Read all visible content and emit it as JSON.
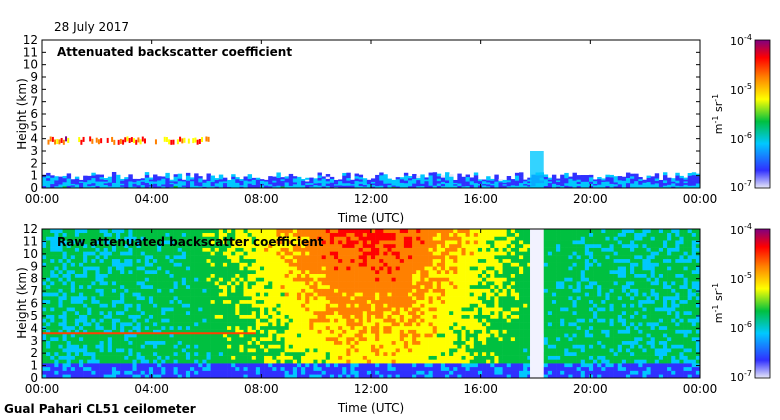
{
  "header": {
    "date": "28 July 2017"
  },
  "footer": {
    "site": "Gual Pahari CL51 ceilometer"
  },
  "colorbar": {
    "labels": [
      "10^-4",
      "10^-5",
      "10^-6",
      "10^-7"
    ],
    "unit": "m^-1 sr^-1",
    "colors": [
      "#e8e8f8",
      "#3030ff",
      "#00c8ff",
      "#00c040",
      "#ffff00",
      "#ff8000",
      "#ff0000",
      "#800080"
    ]
  },
  "chart_data": [
    {
      "type": "heatmap",
      "title": "Attenuated backscatter coefficient",
      "xlabel": "Time (UTC)",
      "ylabel": "Height (km)",
      "xticks": [
        "00:00",
        "04:00",
        "08:00",
        "12:00",
        "16:00",
        "20:00",
        "00:00"
      ],
      "yticks": [
        0,
        1,
        2,
        3,
        4,
        5,
        6,
        7,
        8,
        9,
        10,
        11,
        12
      ],
      "xlim_hours": [
        0,
        24
      ],
      "ylim_km": [
        0,
        12
      ],
      "features": {
        "boundary_layer_top_km": 1.3,
        "cloud_layer_km": 3.8,
        "cloud_layer_hours": [
          0.2,
          6.2
        ],
        "rain_event_hours": [
          17.8,
          18.3
        ]
      }
    },
    {
      "type": "heatmap",
      "title": "Raw attenuated backscatter coefficient",
      "xlabel": "Time (UTC)",
      "ylabel": "Height (km)",
      "xticks": [
        "00:00",
        "04:00",
        "08:00",
        "12:00",
        "16:00",
        "20:00",
        "00:00"
      ],
      "yticks": [
        0,
        1,
        2,
        3,
        4,
        5,
        6,
        7,
        8,
        9,
        10,
        11,
        12
      ],
      "xlim_hours": [
        0,
        24
      ],
      "ylim_km": [
        0,
        12
      ],
      "features": {
        "cloud_layer_km": 3.6,
        "cloud_layer_hours": [
          0,
          7.8
        ],
        "noise_peak_hours": [
          10,
          14
        ],
        "rain_event_hours": [
          17.8,
          18.3
        ]
      }
    }
  ]
}
